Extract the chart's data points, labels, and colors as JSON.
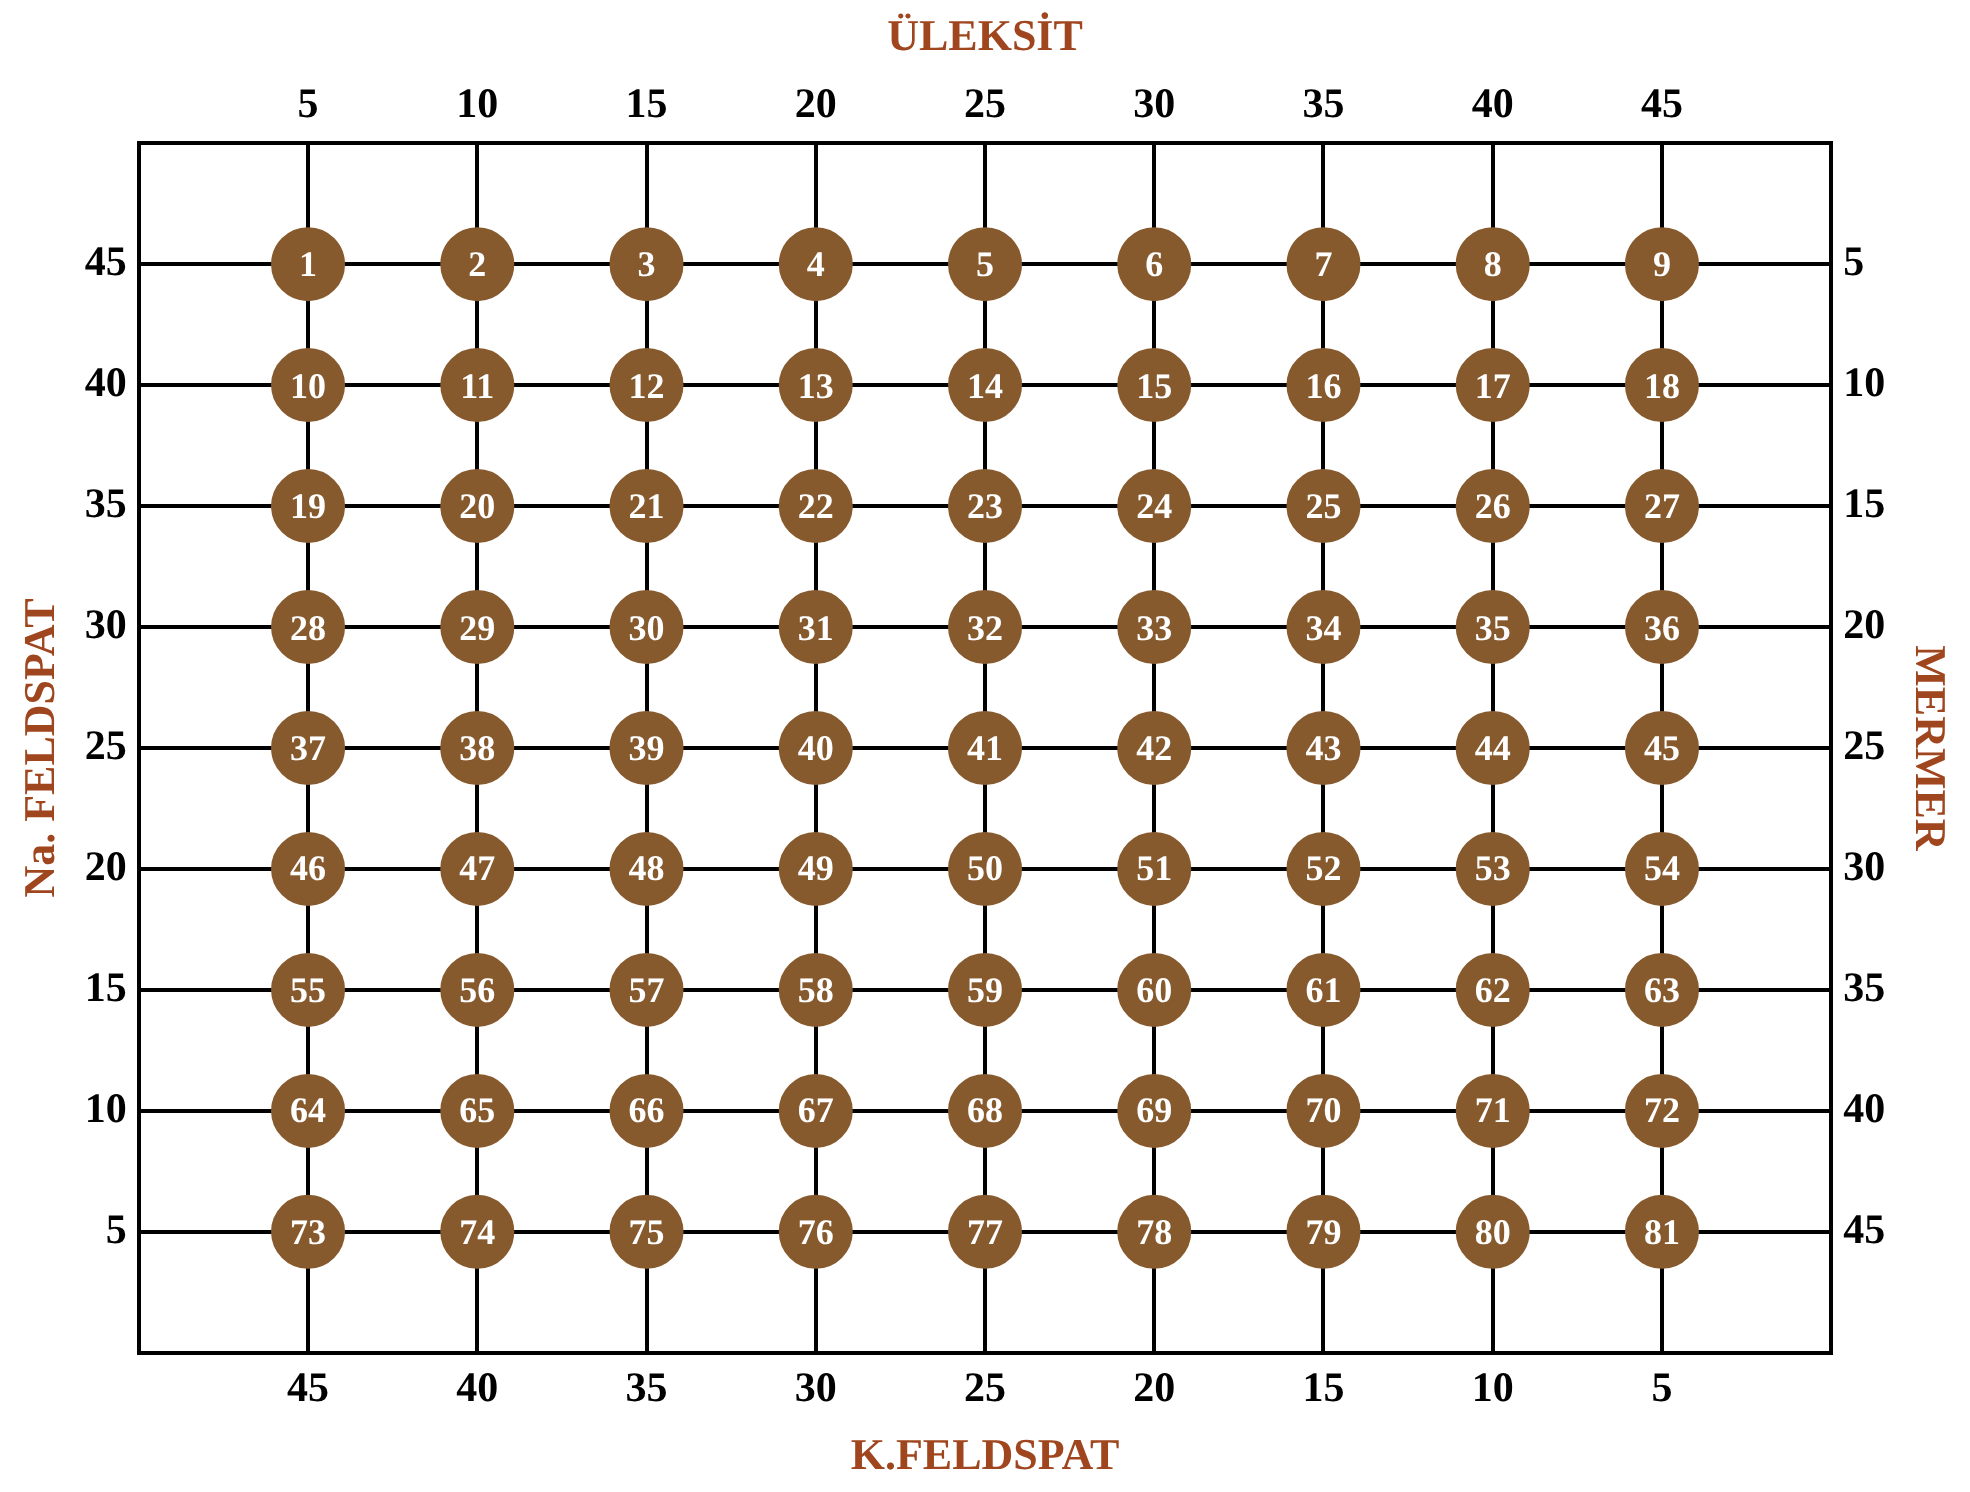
{
  "chart_data": {
    "type": "scatter",
    "xlabel": "K.FELDSPAT",
    "x2label": "ÜLEKSİT",
    "ylabel": "Na. FELDSPAT",
    "y2label": "MERMER",
    "x": [
      45,
      40,
      35,
      30,
      25,
      20,
      15,
      10,
      5,
      45,
      40,
      35,
      30,
      25,
      20,
      15,
      10,
      5,
      45,
      40,
      35,
      30,
      25,
      20,
      15,
      10,
      5,
      45,
      40,
      35,
      30,
      25,
      20,
      15,
      10,
      5,
      45,
      40,
      35,
      30,
      25,
      20,
      15,
      10,
      5,
      45,
      40,
      35,
      30,
      25,
      20,
      15,
      10,
      5,
      45,
      40,
      35,
      30,
      25,
      20,
      15,
      10,
      5,
      45,
      40,
      35,
      30,
      25,
      20,
      15,
      10,
      5,
      45,
      40,
      35,
      30,
      25,
      20,
      15,
      10,
      5
    ],
    "values": [
      45,
      45,
      45,
      45,
      45,
      45,
      45,
      45,
      45,
      40,
      40,
      40,
      40,
      40,
      40,
      40,
      40,
      40,
      35,
      35,
      35,
      35,
      35,
      35,
      35,
      35,
      35,
      30,
      30,
      30,
      30,
      30,
      30,
      30,
      30,
      30,
      25,
      25,
      25,
      25,
      25,
      25,
      25,
      25,
      25,
      20,
      20,
      20,
      20,
      20,
      20,
      20,
      20,
      20,
      15,
      15,
      15,
      15,
      15,
      15,
      15,
      15,
      15,
      10,
      10,
      10,
      10,
      10,
      10,
      10,
      10,
      10,
      5,
      5,
      5,
      5,
      5,
      5,
      5,
      5,
      5
    ],
    "annotations": [
      {
        "text": "1",
        "x": 45,
        "y": 45
      },
      {
        "text": "2",
        "x": 40,
        "y": 45
      },
      {
        "text": "3",
        "x": 35,
        "y": 45
      },
      {
        "text": "4",
        "x": 30,
        "y": 45
      },
      {
        "text": "5",
        "x": 25,
        "y": 45
      },
      {
        "text": "6",
        "x": 20,
        "y": 45
      },
      {
        "text": "7",
        "x": 15,
        "y": 45
      },
      {
        "text": "8",
        "x": 10,
        "y": 45
      },
      {
        "text": "9",
        "x": 5,
        "y": 45
      },
      {
        "text": "10",
        "x": 45,
        "y": 40
      },
      {
        "text": "11",
        "x": 40,
        "y": 40
      },
      {
        "text": "12",
        "x": 35,
        "y": 40
      },
      {
        "text": "13",
        "x": 30,
        "y": 40
      },
      {
        "text": "14",
        "x": 25,
        "y": 40
      },
      {
        "text": "15",
        "x": 20,
        "y": 40
      },
      {
        "text": "16",
        "x": 15,
        "y": 40
      },
      {
        "text": "17",
        "x": 10,
        "y": 40
      },
      {
        "text": "18",
        "x": 5,
        "y": 40
      },
      {
        "text": "19",
        "x": 45,
        "y": 35
      },
      {
        "text": "20",
        "x": 40,
        "y": 35
      },
      {
        "text": "21",
        "x": 35,
        "y": 35
      },
      {
        "text": "22",
        "x": 30,
        "y": 35
      },
      {
        "text": "23",
        "x": 25,
        "y": 35
      },
      {
        "text": "24",
        "x": 20,
        "y": 35
      },
      {
        "text": "25",
        "x": 15,
        "y": 35
      },
      {
        "text": "26",
        "x": 10,
        "y": 35
      },
      {
        "text": "27",
        "x": 5,
        "y": 35
      },
      {
        "text": "28",
        "x": 45,
        "y": 30
      },
      {
        "text": "29",
        "x": 40,
        "y": 30
      },
      {
        "text": "30",
        "x": 35,
        "y": 30
      },
      {
        "text": "31",
        "x": 30,
        "y": 30
      },
      {
        "text": "32",
        "x": 25,
        "y": 30
      },
      {
        "text": "33",
        "x": 20,
        "y": 30
      },
      {
        "text": "34",
        "x": 15,
        "y": 30
      },
      {
        "text": "35",
        "x": 10,
        "y": 30
      },
      {
        "text": "36",
        "x": 5,
        "y": 30
      },
      {
        "text": "37",
        "x": 45,
        "y": 25
      },
      {
        "text": "38",
        "x": 40,
        "y": 25
      },
      {
        "text": "39",
        "x": 35,
        "y": 25
      },
      {
        "text": "40",
        "x": 30,
        "y": 25
      },
      {
        "text": "41",
        "x": 25,
        "y": 25
      },
      {
        "text": "42",
        "x": 20,
        "y": 25
      },
      {
        "text": "43",
        "x": 15,
        "y": 25
      },
      {
        "text": "44",
        "x": 10,
        "y": 25
      },
      {
        "text": "45",
        "x": 5,
        "y": 25
      },
      {
        "text": "46",
        "x": 45,
        "y": 20
      },
      {
        "text": "47",
        "x": 40,
        "y": 20
      },
      {
        "text": "48",
        "x": 35,
        "y": 20
      },
      {
        "text": "49",
        "x": 30,
        "y": 20
      },
      {
        "text": "50",
        "x": 25,
        "y": 20
      },
      {
        "text": "51",
        "x": 20,
        "y": 20
      },
      {
        "text": "52",
        "x": 15,
        "y": 20
      },
      {
        "text": "53",
        "x": 10,
        "y": 20
      },
      {
        "text": "54",
        "x": 5,
        "y": 20
      },
      {
        "text": "55",
        "x": 45,
        "y": 15
      },
      {
        "text": "56",
        "x": 40,
        "y": 15
      },
      {
        "text": "57",
        "x": 35,
        "y": 15
      },
      {
        "text": "58",
        "x": 30,
        "y": 15
      },
      {
        "text": "59",
        "x": 25,
        "y": 15
      },
      {
        "text": "60",
        "x": 20,
        "y": 15
      },
      {
        "text": "61",
        "x": 15,
        "y": 15
      },
      {
        "text": "62",
        "x": 10,
        "y": 15
      },
      {
        "text": "63",
        "x": 5,
        "y": 15
      },
      {
        "text": "64",
        "x": 45,
        "y": 10
      },
      {
        "text": "65",
        "x": 40,
        "y": 10
      },
      {
        "text": "66",
        "x": 35,
        "y": 10
      },
      {
        "text": "67",
        "x": 30,
        "y": 10
      },
      {
        "text": "68",
        "x": 25,
        "y": 10
      },
      {
        "text": "69",
        "x": 20,
        "y": 10
      },
      {
        "text": "70",
        "x": 15,
        "y": 10
      },
      {
        "text": "71",
        "x": 10,
        "y": 10
      },
      {
        "text": "72",
        "x": 5,
        "y": 10
      },
      {
        "text": "73",
        "x": 45,
        "y": 5
      },
      {
        "text": "74",
        "x": 40,
        "y": 5
      },
      {
        "text": "75",
        "x": 35,
        "y": 5
      },
      {
        "text": "76",
        "x": 30,
        "y": 5
      },
      {
        "text": "77",
        "x": 25,
        "y": 5
      },
      {
        "text": "78",
        "x": 20,
        "y": 5
      },
      {
        "text": "79",
        "x": 15,
        "y": 5
      },
      {
        "text": "80",
        "x": 10,
        "y": 5
      },
      {
        "text": "81",
        "x": 5,
        "y": 5
      }
    ],
    "color": "#875a2e",
    "marker": "circle",
    "grid": true,
    "xlim": [
      50,
      0
    ],
    "xticks": [
      45,
      40,
      35,
      30,
      25,
      20,
      15,
      10,
      5
    ],
    "x2lim": [
      0,
      50
    ],
    "x2ticks": [
      5,
      10,
      15,
      20,
      25,
      30,
      35,
      40,
      45
    ],
    "ylim": [
      0,
      50
    ],
    "yticks": [
      5,
      10,
      15,
      20,
      25,
      30,
      35,
      40,
      45
    ],
    "y2lim": [
      50,
      0
    ],
    "y2ticks": [
      45,
      40,
      35,
      30,
      25,
      20,
      15,
      10,
      5
    ]
  }
}
